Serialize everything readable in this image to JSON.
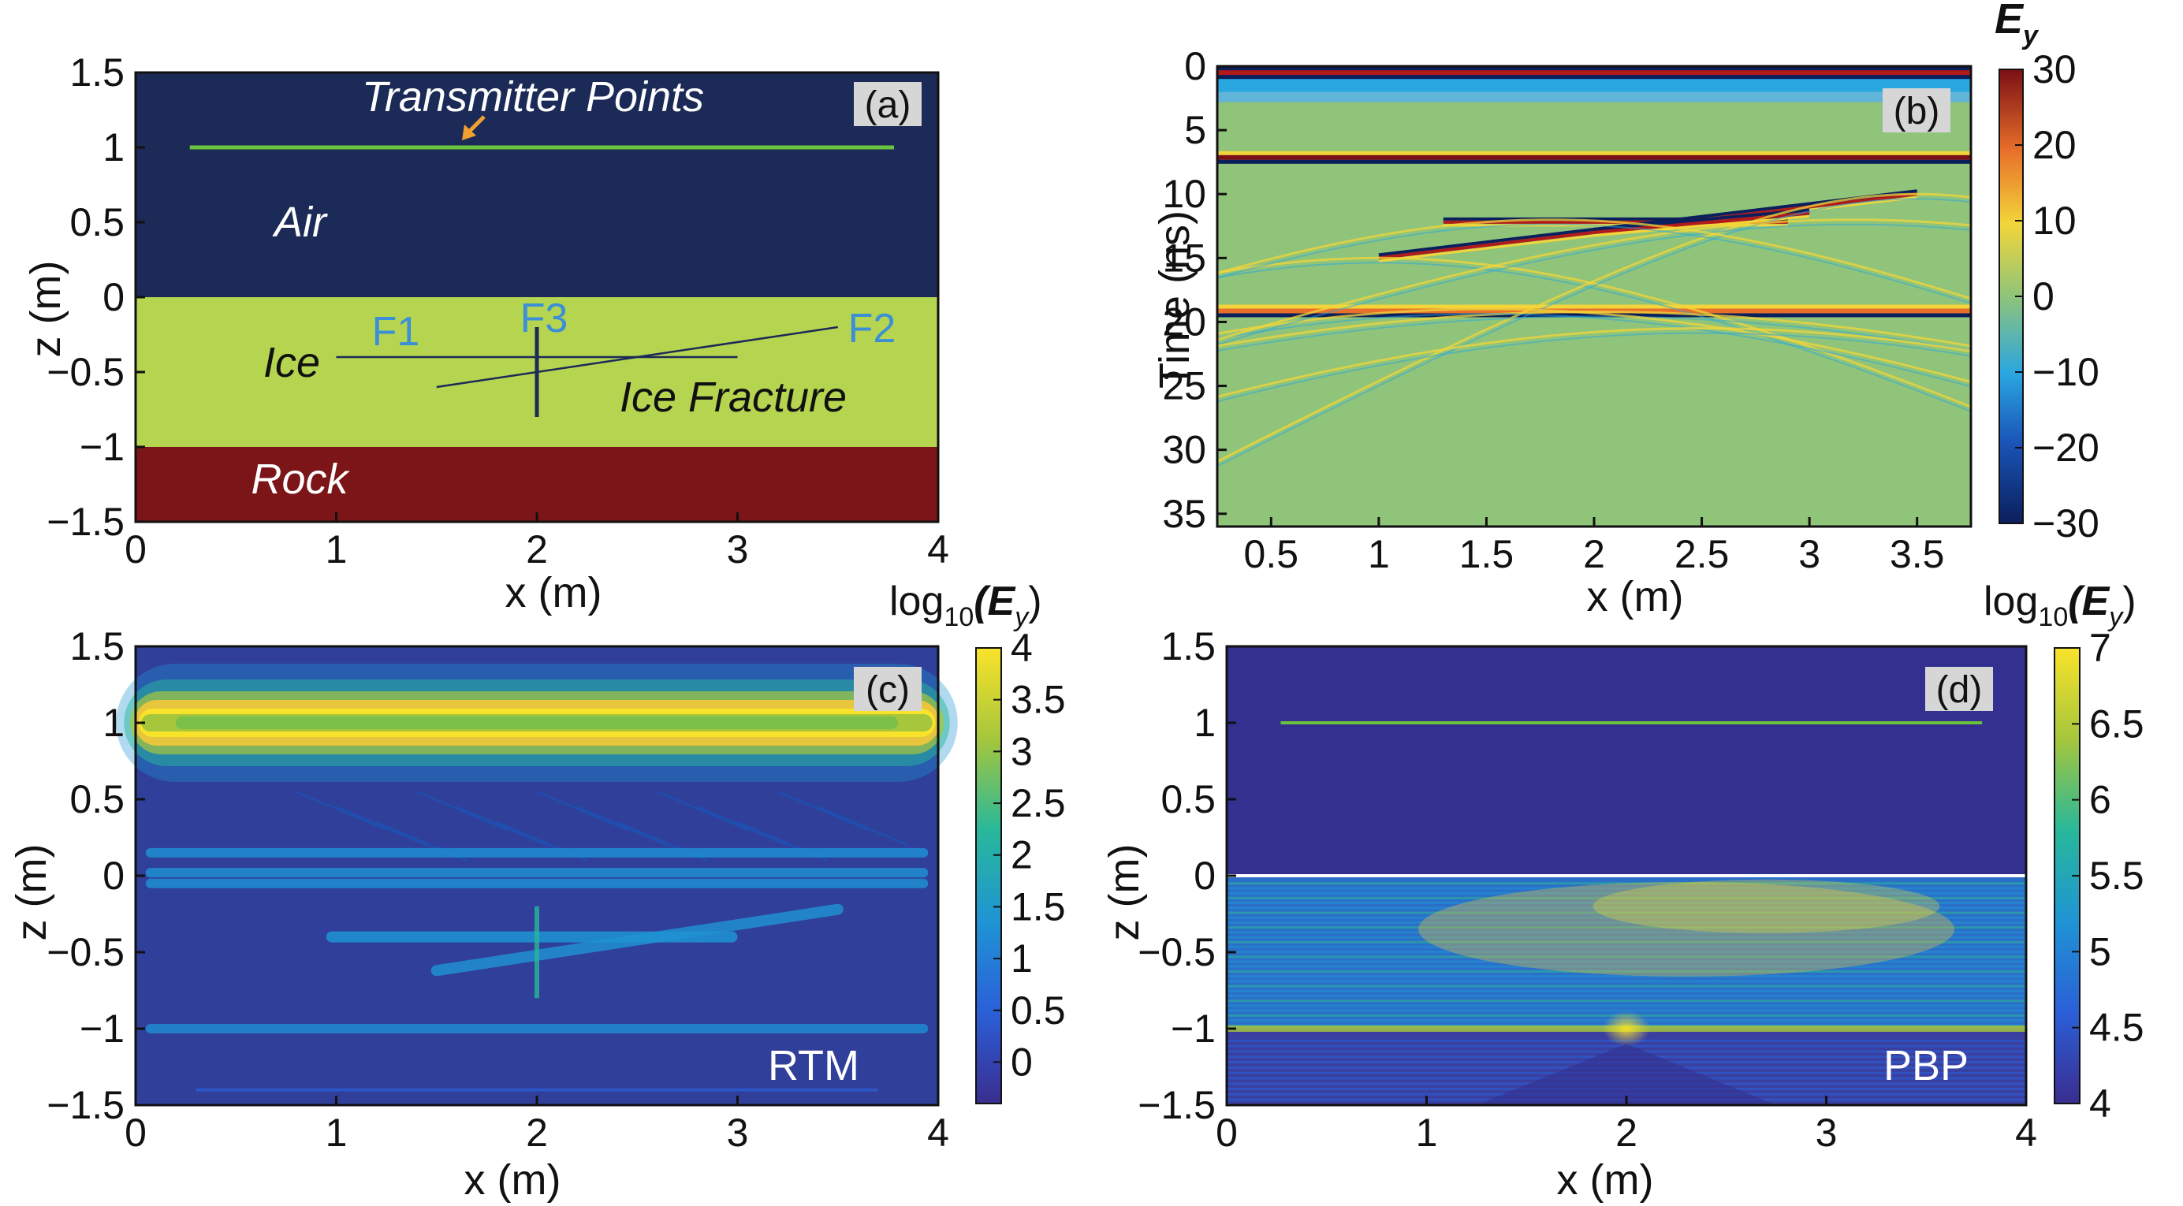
{
  "chart_data": [
    {
      "panel": "a",
      "type": "diagram",
      "tag": "(a)",
      "xlabel": "x (m)",
      "ylabel": "z (m)",
      "xlim": [
        0,
        4
      ],
      "ylim": [
        -1.5,
        1.5
      ],
      "xticks": [
        "0",
        "1",
        "2",
        "3",
        "4"
      ],
      "yticks": [
        "1.5",
        "1",
        "0.5",
        "0",
        "−0.5",
        "−1",
        "−1.5"
      ],
      "layers": [
        {
          "name": "Air",
          "z_top": 1.5,
          "z_bottom": 0,
          "color": "#1b2a57"
        },
        {
          "name": "Ice",
          "z_top": 0,
          "z_bottom": -1,
          "color": "#b5d450"
        },
        {
          "name": "Rock",
          "z_top": -1,
          "z_bottom": -1.5,
          "color": "#7b1518"
        }
      ],
      "transmitter_line": {
        "x": [
          0.27,
          3.78
        ],
        "z": 1.0,
        "color": "#6ac23e"
      },
      "fractures": [
        {
          "name": "F1",
          "x": [
            1.0,
            3.0
          ],
          "z": [
            -0.4,
            -0.4
          ]
        },
        {
          "name": "F2",
          "x": [
            1.5,
            3.5
          ],
          "z": [
            -0.6,
            -0.2
          ]
        },
        {
          "name": "F3",
          "x": [
            2.0,
            2.0
          ],
          "z": [
            -0.2,
            -0.8
          ]
        }
      ],
      "labels": {
        "transmitter": "Transmitter Points",
        "air": "Air",
        "ice": "Ice",
        "ice_fracture": "Ice Fracture",
        "rock": "Rock",
        "f1": "F1",
        "f2": "F2",
        "f3": "F3"
      },
      "colors": {
        "label_blue": "#3b8fd6",
        "arrow": "#f0a030"
      }
    },
    {
      "panel": "b",
      "type": "heatmap",
      "tag": "(b)",
      "xlabel": "x (m)",
      "ylabel": "Time (ns)",
      "xlim": [
        0.25,
        3.75
      ],
      "ylim": [
        36,
        0
      ],
      "xticks": [
        "0.5",
        "1",
        "1.5",
        "2",
        "2.5",
        "3",
        "3.5"
      ],
      "yticks": [
        "0",
        "5",
        "10",
        "15",
        "20",
        "25",
        "30",
        "35"
      ],
      "colorbar": {
        "label": "E",
        "label_sub": "y",
        "range": [
          -30,
          30
        ],
        "ticks": [
          "30",
          "20",
          "10",
          "0",
          "−10",
          "−20",
          "−30"
        ]
      },
      "reflections_ns": [
        0.5,
        7.2,
        12.2,
        19.2
      ],
      "diffraction_apexes": [
        {
          "x": 1.0,
          "t": 15.0
        },
        {
          "x": 3.5,
          "t": 10.0
        }
      ]
    },
    {
      "panel": "c",
      "type": "heatmap",
      "tag": "(c)",
      "method": "RTM",
      "xlabel": "x (m)",
      "ylabel": "z (m)",
      "xlim": [
        0,
        4
      ],
      "ylim": [
        -1.5,
        1.5
      ],
      "xticks": [
        "0",
        "1",
        "2",
        "3",
        "4"
      ],
      "yticks": [
        "1.5",
        "1",
        "0.5",
        "0",
        "−0.5",
        "−1",
        "−1.5"
      ],
      "colorbar": {
        "label": "log",
        "label_sub": "10",
        "label_rest": "(E",
        "label_rest_sub": "y",
        "label_close": ")",
        "range": [
          -0.4,
          4
        ],
        "ticks": [
          "4",
          "3.5",
          "3",
          "2.5",
          "2",
          "1.5",
          "1",
          "0.5",
          "0"
        ]
      }
    },
    {
      "panel": "d",
      "type": "heatmap",
      "tag": "(d)",
      "method": "PBP",
      "xlabel": "x (m)",
      "ylabel": "z (m)",
      "xlim": [
        0,
        4
      ],
      "ylim": [
        -1.5,
        1.5
      ],
      "xticks": [
        "0",
        "1",
        "2",
        "3",
        "4"
      ],
      "yticks": [
        "1.5",
        "1",
        "0.5",
        "0",
        "−0.5",
        "−1",
        "−1.5"
      ],
      "colorbar": {
        "label": "log",
        "label_sub": "10",
        "label_rest": "(E",
        "label_rest_sub": "y",
        "label_close": ")",
        "range": [
          4,
          7
        ],
        "ticks": [
          "7",
          "6.5",
          "6",
          "5.5",
          "5",
          "4.5",
          "4"
        ]
      }
    }
  ]
}
